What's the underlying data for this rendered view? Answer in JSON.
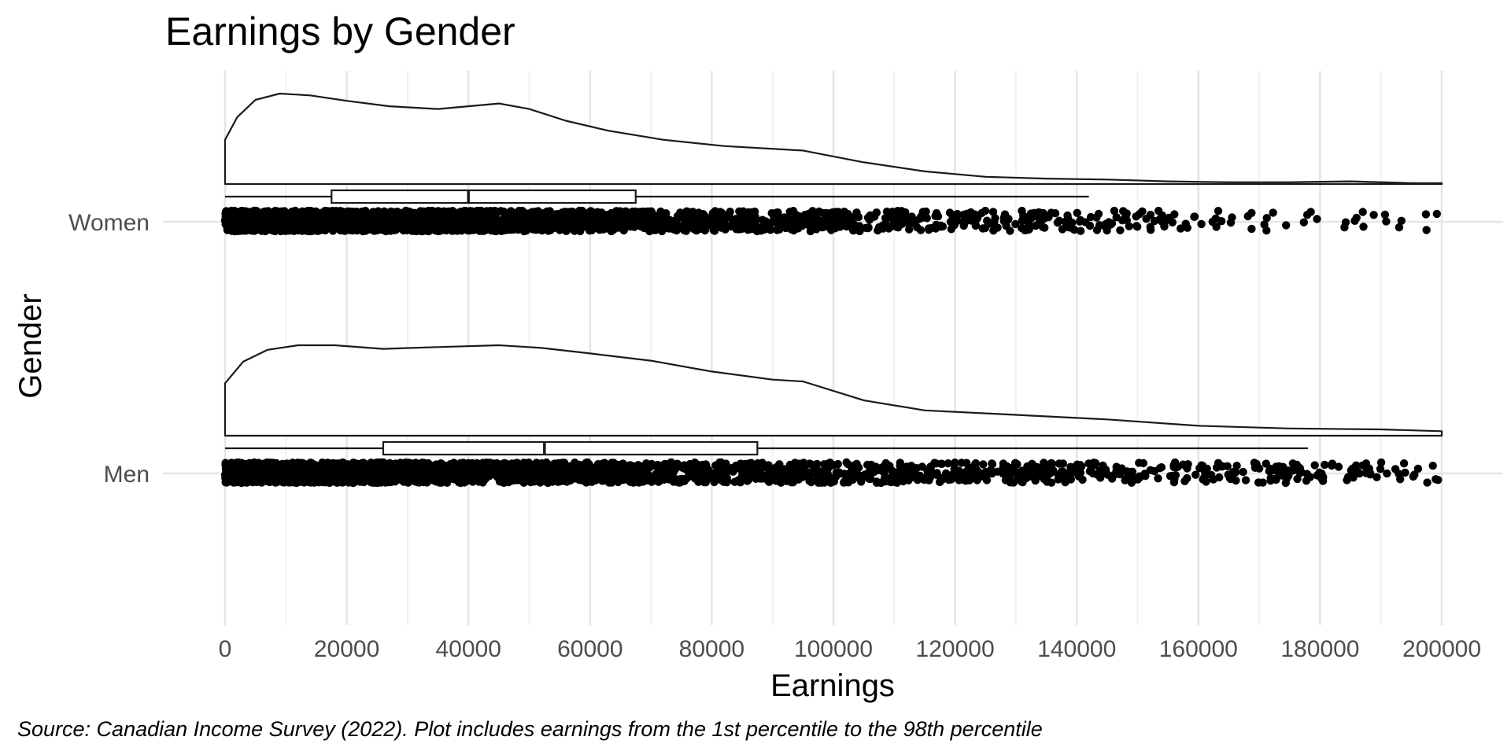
{
  "chart_data": {
    "type": "raincloud",
    "title": "Earnings by Gender",
    "xlabel": "Earnings",
    "ylabel": "Gender",
    "caption": "Source: Canadian Income Survey (2022). Plot includes earnings from the 1st percentile to the 98th percentile",
    "xlim": [
      0,
      200000
    ],
    "x_ticks": [
      0,
      20000,
      40000,
      60000,
      80000,
      100000,
      120000,
      140000,
      160000,
      180000,
      200000
    ],
    "x_tick_labels": [
      "0",
      "20000",
      "40000",
      "60000",
      "80000",
      "100000",
      "120000",
      "140000",
      "160000",
      "180000",
      "200000"
    ],
    "categories": [
      "Women",
      "Men"
    ],
    "grid": true,
    "series": [
      {
        "name": "Women",
        "boxplot": {
          "whisker_low": 0,
          "q1": 17500,
          "median": 40000,
          "q3": 67500,
          "whisker_high": 142000
        },
        "density": {
          "x": [
            0,
            2000,
            5000,
            9000,
            14000,
            20000,
            27000,
            35000,
            40000,
            45000,
            50000,
            56000,
            63000,
            72000,
            82000,
            95000,
            105000,
            115000,
            125000,
            135000,
            145000,
            155000,
            165000,
            175000,
            185000,
            195000,
            200000
          ],
          "y": [
            0.49,
            0.74,
            0.93,
            1.0,
            0.98,
            0.92,
            0.86,
            0.83,
            0.86,
            0.89,
            0.83,
            0.7,
            0.59,
            0.49,
            0.42,
            0.37,
            0.24,
            0.14,
            0.08,
            0.06,
            0.05,
            0.03,
            0.02,
            0.02,
            0.03,
            0.01,
            0.01
          ]
        },
        "points_xmax": 200000
      },
      {
        "name": "Men",
        "boxplot": {
          "whisker_low": 0,
          "q1": 26000,
          "median": 52500,
          "q3": 87500,
          "whisker_high": 178000
        },
        "density": {
          "x": [
            0,
            3000,
            7000,
            12000,
            18000,
            26000,
            35000,
            45000,
            52000,
            60000,
            70000,
            80000,
            90000,
            95000,
            105000,
            115000,
            130000,
            145000,
            160000,
            175000,
            190000,
            200000
          ],
          "y": [
            0.58,
            0.82,
            0.95,
            1.0,
            1.0,
            0.96,
            0.98,
            1.0,
            0.97,
            0.91,
            0.83,
            0.71,
            0.62,
            0.6,
            0.39,
            0.28,
            0.23,
            0.18,
            0.11,
            0.08,
            0.07,
            0.05
          ]
        },
        "points_xmax": 200000
      }
    ]
  }
}
